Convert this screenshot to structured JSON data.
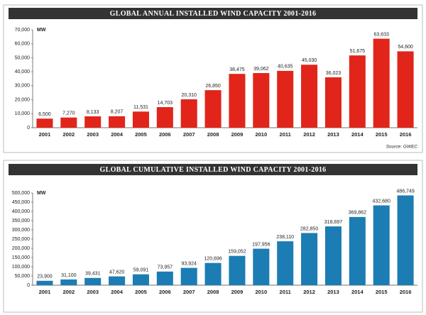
{
  "chart_data": [
    {
      "type": "bar",
      "title": "GLOBAL ANNUAL INSTALLED WIND CAPACITY 2001-2016",
      "y_unit": "MW",
      "source": "Source: GWEC",
      "color": "#e1251b",
      "categories": [
        "2001",
        "2002",
        "2003",
        "2004",
        "2005",
        "2006",
        "2007",
        "2008",
        "2009",
        "2010",
        "2011",
        "2012",
        "2013",
        "2014",
        "2015",
        "2016"
      ],
      "values": [
        6500,
        7270,
        8133,
        8207,
        11531,
        14703,
        20310,
        26850,
        38475,
        39062,
        40635,
        45030,
        36023,
        51675,
        63633,
        54600
      ],
      "value_labels": [
        "6,500",
        "7,270",
        "8,133",
        "8,207",
        "11,531",
        "14,703",
        "20,310",
        "26,850",
        "38,475",
        "39,062",
        "40,635",
        "45,030",
        "36,023",
        "51,675",
        "63,633",
        "54,600"
      ],
      "ylim": [
        0,
        70000
      ],
      "yticks": [
        0,
        {
          "value": 10000,
          "label": "10,000"
        },
        {
          "value": 20000,
          "label": "20,000"
        },
        {
          "value": 30000,
          "label": "30,000"
        },
        {
          "value": 40000,
          "label": "40,000"
        },
        {
          "value": 50000,
          "label": "50,000"
        },
        {
          "value": 60000,
          "label": "60,000"
        },
        {
          "value": 70000,
          "label": "70,000"
        }
      ]
    },
    {
      "type": "bar",
      "title": "GLOBAL CUMULATIVE INSTALLED WIND CAPACITY 2001-2016",
      "y_unit": "MW",
      "color": "#1b7db3",
      "categories": [
        "2001",
        "2002",
        "2003",
        "2004",
        "2005",
        "2006",
        "2007",
        "2008",
        "2009",
        "2010",
        "2011",
        "2012",
        "2013",
        "2014",
        "2015",
        "2016"
      ],
      "values": [
        23900,
        31100,
        39431,
        47620,
        59091,
        73957,
        93924,
        120696,
        159052,
        197956,
        238110,
        282850,
        318697,
        369862,
        432680,
        486749
      ],
      "value_labels": [
        "23,900",
        "31,100",
        "39,431",
        "47,620",
        "59,091",
        "73,957",
        "93,924",
        "120,696",
        "159,052",
        "197,956",
        "238,110",
        "282,850",
        "318,697",
        "369,862",
        "432,680",
        "486,749"
      ],
      "ylim": [
        0,
        500000
      ],
      "yticks": [
        0,
        {
          "value": 50000,
          "label": "50,000"
        },
        {
          "value": 100000,
          "label": "100,000"
        },
        {
          "value": 150000,
          "label": "150,000"
        },
        {
          "value": 200000,
          "label": "200,000"
        },
        {
          "value": 250000,
          "label": "250,000"
        },
        {
          "value": 300000,
          "label": "300,000"
        },
        {
          "value": 350000,
          "label": "350,000"
        },
        {
          "value": 400000,
          "label": "400,000"
        },
        {
          "value": 450000,
          "label": "450,000"
        },
        {
          "value": 500000,
          "label": "500,000"
        }
      ]
    }
  ]
}
